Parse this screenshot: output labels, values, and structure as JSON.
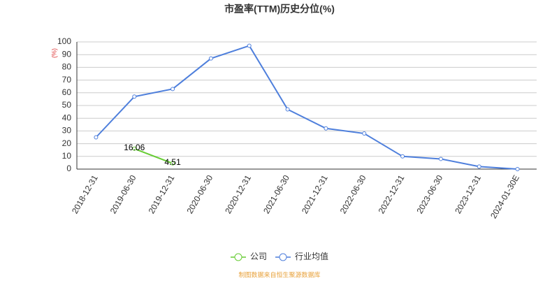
{
  "chart_data": {
    "type": "line",
    "title": "市盈率(TTM)历史分位(%)",
    "y_label": "(%)",
    "categories": [
      "2018-12-31",
      "2019-06-30",
      "2019-12-31",
      "2020-06-30",
      "2020-12-31",
      "2021-06-30",
      "2021-12-31",
      "2022-06-30",
      "2022-12-31",
      "2023-06-30",
      "2023-12-31",
      "2024-01-30E"
    ],
    "series": [
      {
        "name": "公司",
        "color": "#66cc33",
        "values": [
          null,
          16.06,
          4.51,
          null,
          null,
          null,
          null,
          null,
          null,
          null,
          null,
          null
        ],
        "show_labels": true
      },
      {
        "name": "行业均值",
        "color": "#4e7fdc",
        "values": [
          25,
          57,
          63,
          87,
          97,
          47,
          32,
          28,
          10,
          8,
          2,
          0
        ],
        "show_labels": false
      }
    ],
    "ylim": [
      0,
      100
    ],
    "yticks": [
      0,
      10,
      20,
      30,
      40,
      50,
      60,
      70,
      80,
      90,
      100
    ],
    "grid": true,
    "source": "制图数据来自恒生聚源数据库"
  }
}
